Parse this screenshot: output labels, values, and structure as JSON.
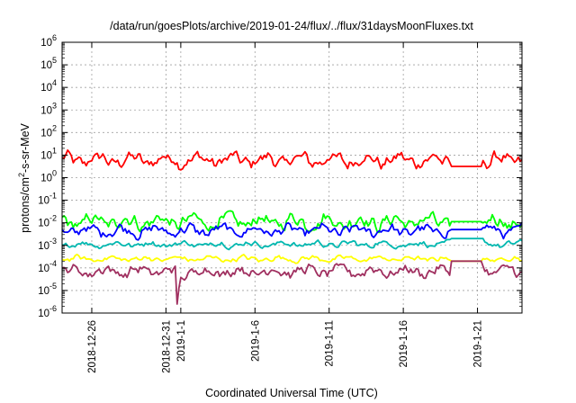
{
  "chart_data": {
    "type": "line",
    "title": "/data/run/goesPlots/archive/2019-01-24/flux/../flux/31daysMoonFluxes.txt",
    "xlabel": "Coordinated Universal Time (UTC)",
    "ylabel_parts": {
      "pre": "protons/cm",
      "sup": "2",
      "post": "-s-sr-MeV"
    },
    "yscale": "log",
    "ylim": [
      "1e-6",
      "1e6"
    ],
    "y_ticks": [
      {
        "base": "10",
        "exp": "-6",
        "value": -6
      },
      {
        "base": "10",
        "exp": "-5",
        "value": -5
      },
      {
        "base": "10",
        "exp": "-4",
        "value": -4
      },
      {
        "base": "10",
        "exp": "-3",
        "value": -3
      },
      {
        "base": "10",
        "exp": "-2",
        "value": -2
      },
      {
        "base": "10",
        "exp": "-1",
        "value": -1
      },
      {
        "base": "10",
        "exp": "0",
        "value": 0
      },
      {
        "base": "10",
        "exp": "1",
        "value": 1
      },
      {
        "base": "10",
        "exp": "2",
        "value": 2
      },
      {
        "base": "10",
        "exp": "3",
        "value": 3
      },
      {
        "base": "10",
        "exp": "4",
        "value": 4
      },
      {
        "base": "10",
        "exp": "5",
        "value": 5
      },
      {
        "base": "10",
        "exp": "6",
        "value": 6
      }
    ],
    "xlim": [
      "2018-12-24",
      "2019-01-24"
    ],
    "x_ticks": [
      {
        "label": "2018-12-26",
        "date": "2018-12-26"
      },
      {
        "label": "2018-12-31",
        "date": "2018-12-31"
      },
      {
        "label": "2019-1-1",
        "date": "2019-01-01"
      },
      {
        "label": "2019-1-6",
        "date": "2019-01-06"
      },
      {
        "label": "2019-1-11",
        "date": "2019-01-11"
      },
      {
        "label": "2019-1-16",
        "date": "2019-01-16"
      },
      {
        "label": "2019-1-21",
        "date": "2019-01-21"
      }
    ],
    "grid": true,
    "series": [
      {
        "color": "#ff0000",
        "log_level": 0.78,
        "log_amplitude": 0.55,
        "gap_value": 0.5
      },
      {
        "color": "#00ff00",
        "log_level": -1.95,
        "log_amplitude": 0.6,
        "gap_value": -1.95
      },
      {
        "color": "#0000ff",
        "log_level": -2.35,
        "log_amplitude": 0.45,
        "gap_value": -2.3
      },
      {
        "color": "#00b8b0",
        "log_level": -2.95,
        "log_amplitude": 0.25,
        "gap_value": -2.7
      },
      {
        "color": "#ffff00",
        "log_level": -3.6,
        "log_amplitude": 0.22,
        "gap_value": -3.7
      },
      {
        "color": "#a03060",
        "log_level": -4.15,
        "log_amplitude": 0.45,
        "gap_value": -3.7
      }
    ],
    "data_gaps": [
      {
        "start": "2019-01-19T06:00",
        "end": "2019-01-21T06:00"
      }
    ]
  }
}
